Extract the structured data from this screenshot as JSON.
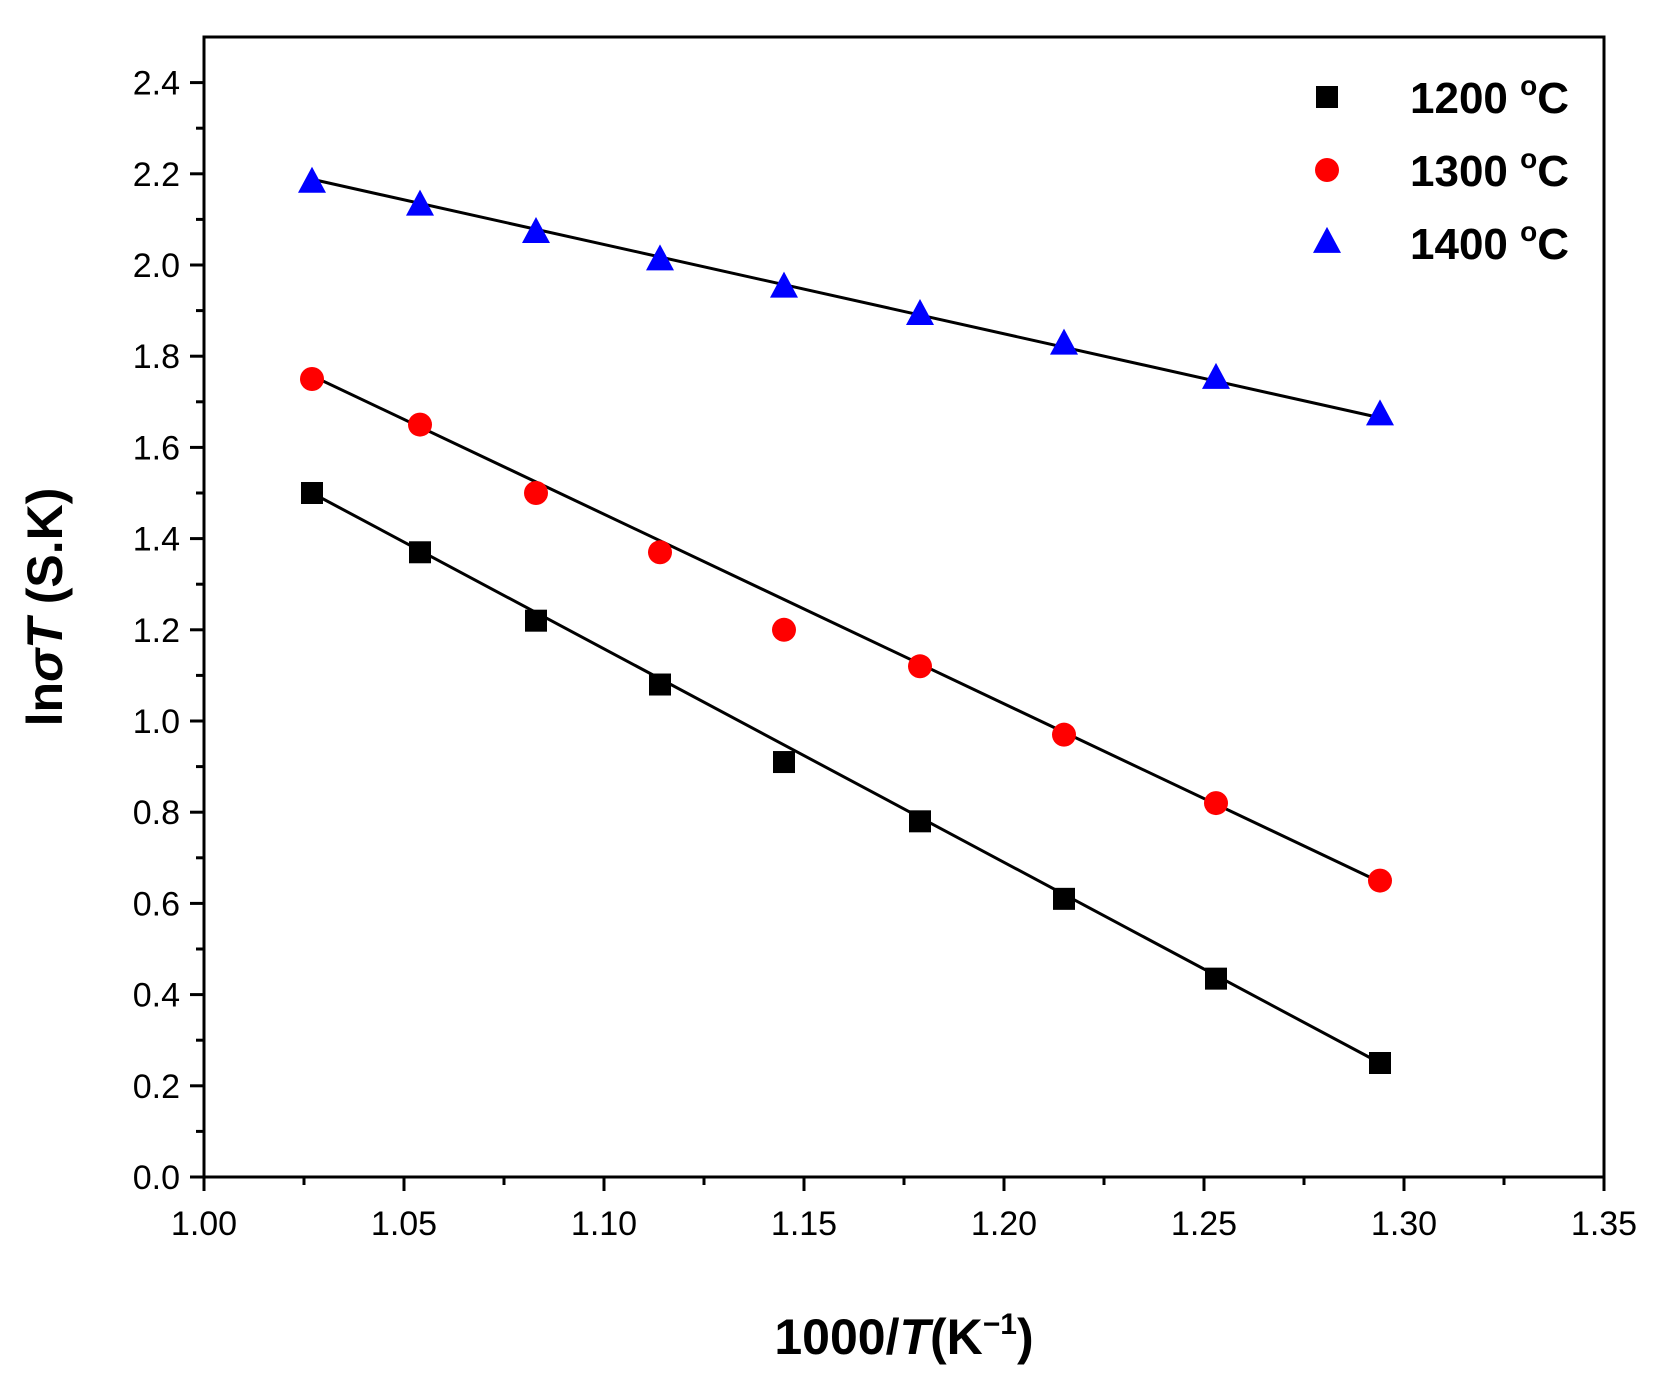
{
  "chart_data": {
    "type": "scatter",
    "title": "",
    "xlabel": {
      "prefix": "1000/",
      "italic": "T",
      "suffix": "(K",
      "sup": "−1",
      "close": ")"
    },
    "ylabel": {
      "prefix": "ln",
      "italic": "σT",
      "suffix": " (S.K)"
    },
    "xlim": [
      1.0,
      1.35
    ],
    "ylim": [
      0.0,
      2.5
    ],
    "xticks": [
      "1.00",
      "1.05",
      "1.10",
      "1.15",
      "1.20",
      "1.25",
      "1.30",
      "1.35"
    ],
    "yticks": [
      "0.0",
      "0.2",
      "0.4",
      "0.6",
      "0.8",
      "1.0",
      "1.2",
      "1.4",
      "1.6",
      "1.8",
      "2.0",
      "2.2",
      "2.4"
    ],
    "legend_position": "top-right",
    "x": [
      1.027,
      1.054,
      1.083,
      1.114,
      1.145,
      1.179,
      1.215,
      1.253,
      1.294
    ],
    "series": [
      {
        "name": "1200",
        "unit_sup": "o",
        "unit": "C",
        "marker": "square",
        "color": "#000000",
        "values": [
          1.5,
          1.37,
          1.22,
          1.08,
          0.91,
          0.78,
          0.61,
          0.435,
          0.25
        ],
        "fit": {
          "x": [
            1.027,
            1.294
          ],
          "y": [
            1.5,
            0.25
          ]
        }
      },
      {
        "name": "1300",
        "unit_sup": "o",
        "unit": "C",
        "marker": "circle",
        "color": "#ff0000",
        "values": [
          1.75,
          1.65,
          1.5,
          1.37,
          1.2,
          1.12,
          0.97,
          0.82,
          0.65
        ],
        "fit": {
          "x": [
            1.027,
            1.294
          ],
          "y": [
            1.757,
            0.647
          ]
        }
      },
      {
        "name": "1400",
        "unit_sup": "o",
        "unit": "C",
        "marker": "triangle",
        "color": "#0000ff",
        "values": [
          2.18,
          2.13,
          2.07,
          2.01,
          1.95,
          1.89,
          1.825,
          1.75,
          1.67
        ],
        "fit": {
          "x": [
            1.027,
            1.294
          ],
          "y": [
            2.188,
            1.665
          ]
        }
      }
    ]
  }
}
